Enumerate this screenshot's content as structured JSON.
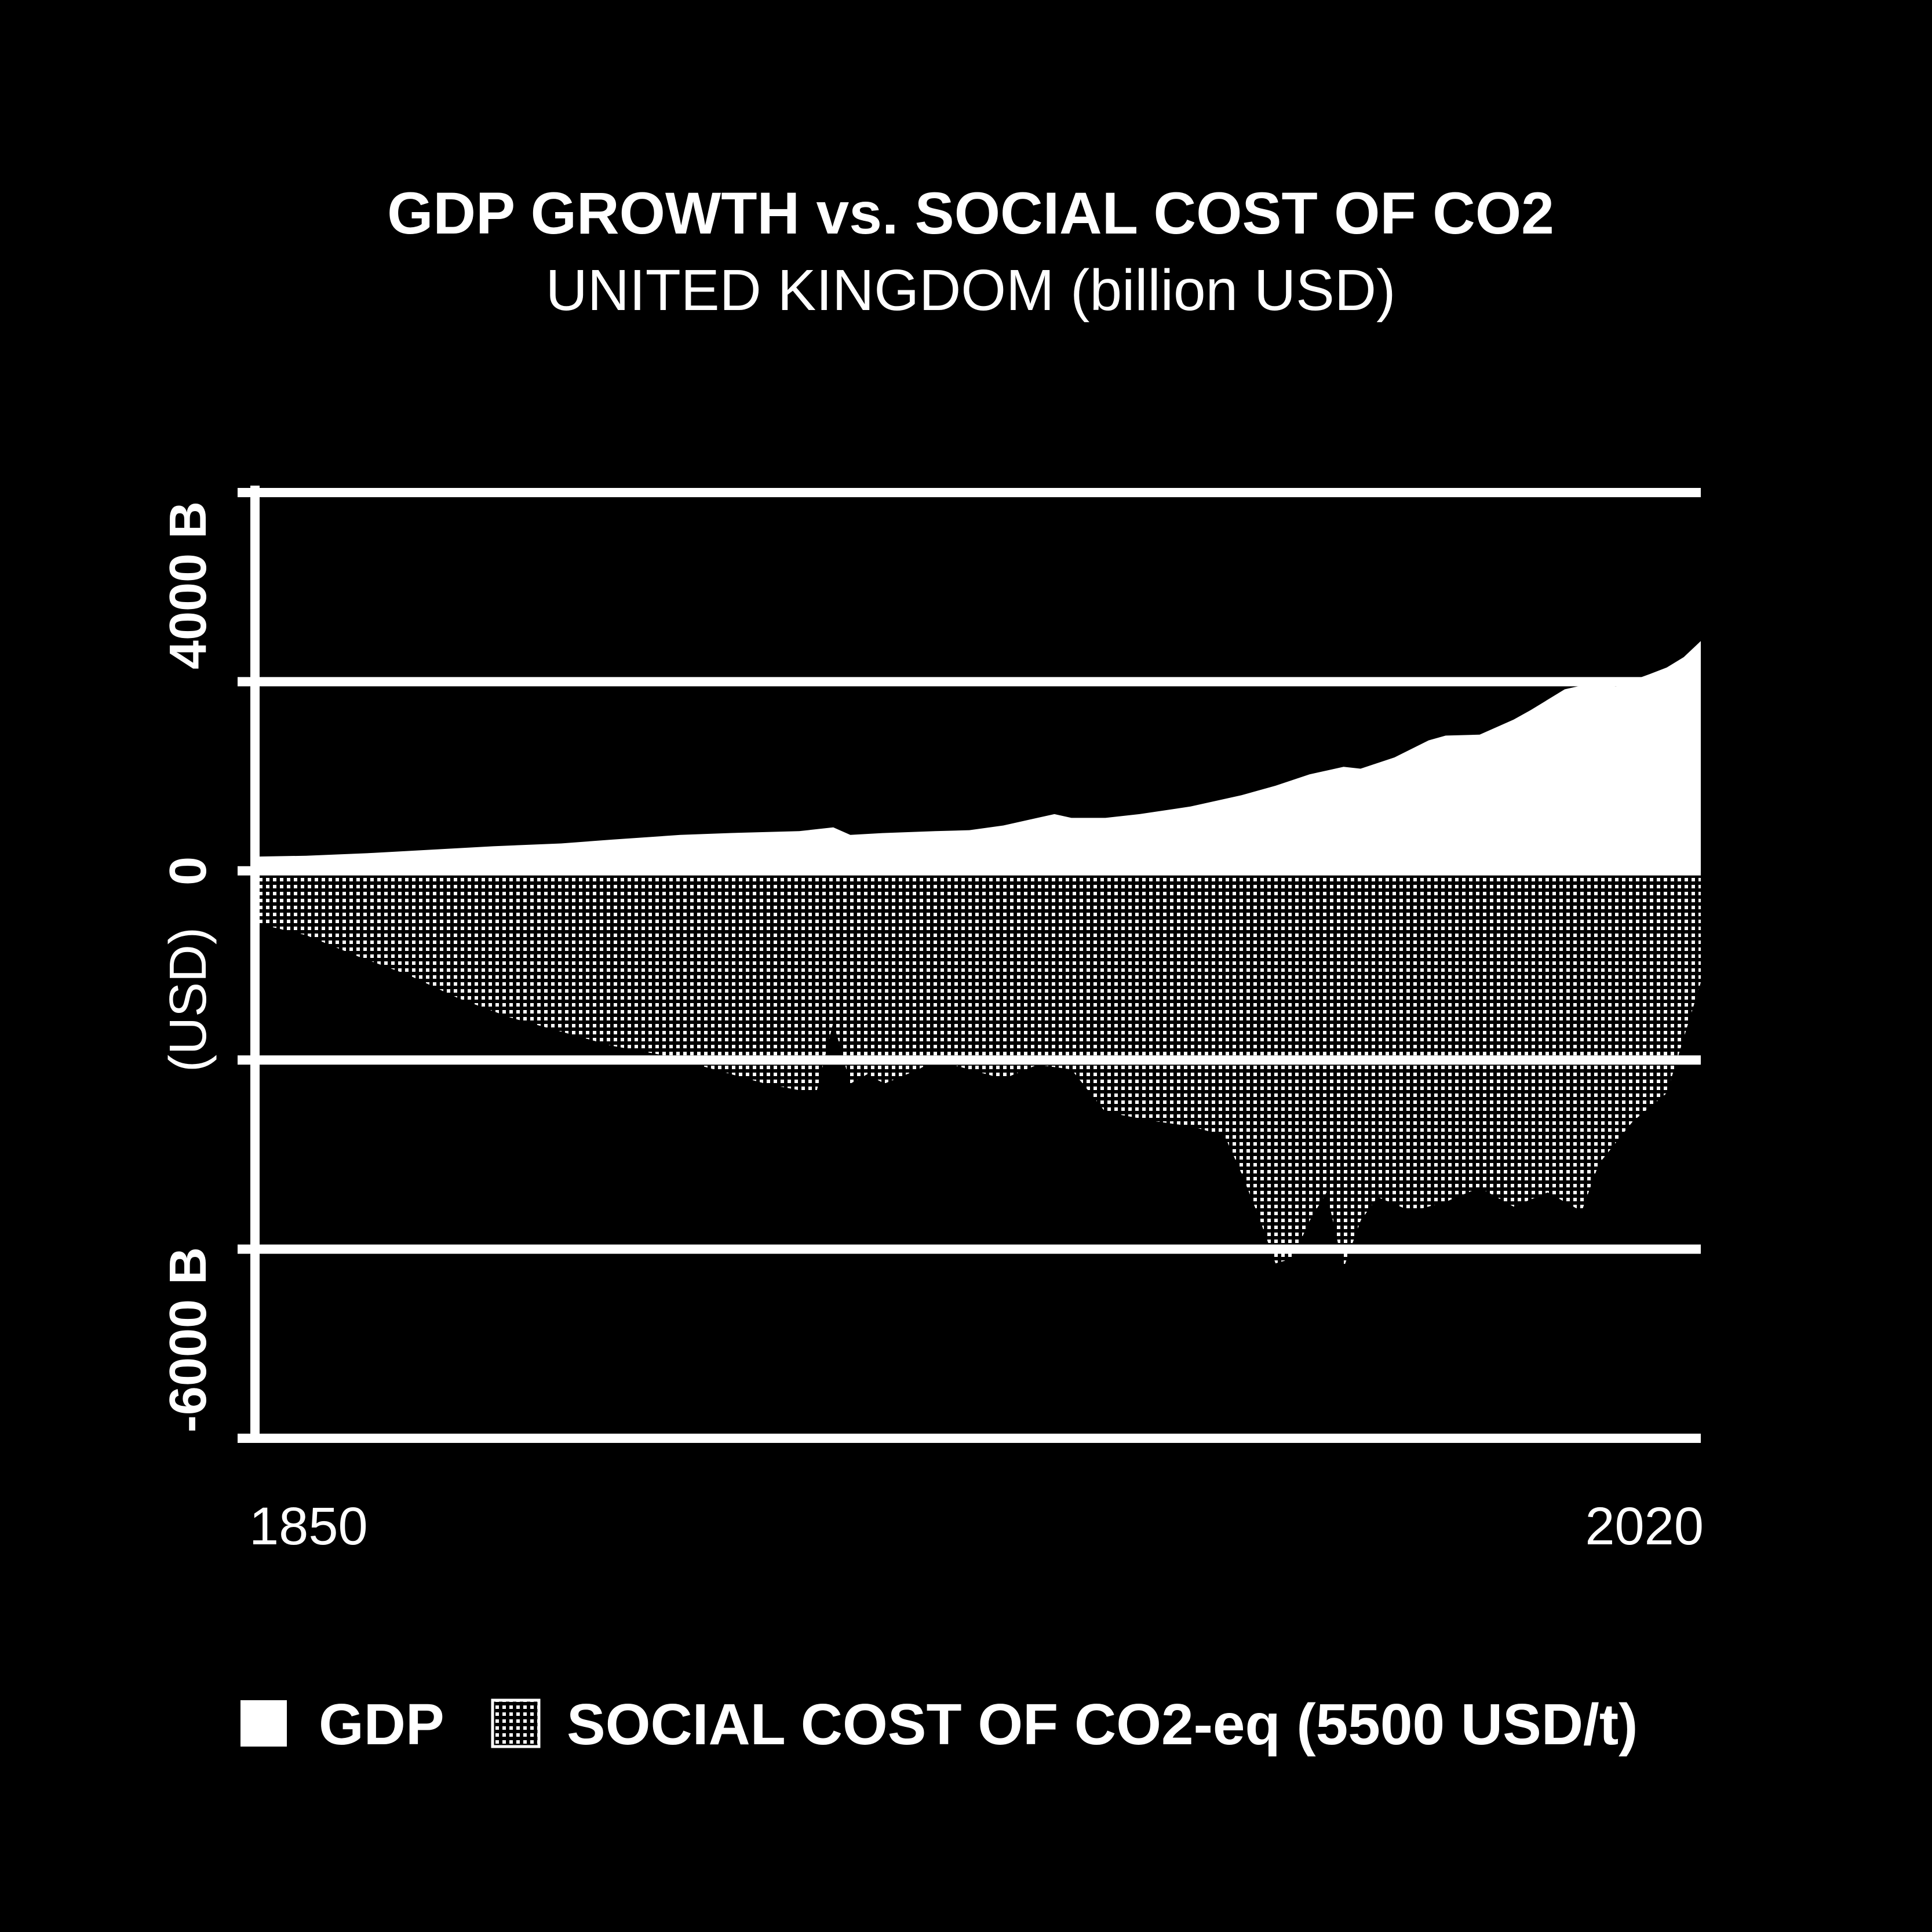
{
  "chart_data": {
    "type": "area",
    "title": "GDP GROWTH vs. SOCIAL COST OF CO2",
    "subtitle": "UNITED KINGDOM (billion USD)",
    "ylabel": "(USD)",
    "ylim": [
      -6000,
      4000
    ],
    "yticks": [
      {
        "value": 4000,
        "label": "4000 B"
      },
      {
        "value": 0,
        "label": "0"
      },
      {
        "value": -6000,
        "label": "-6000 B"
      }
    ],
    "ygrid": [
      4000,
      2000,
      0,
      -2000,
      -4000,
      -6000
    ],
    "xlim": [
      1850,
      2020
    ],
    "xticks": [
      {
        "value": 1850,
        "label": "1850"
      },
      {
        "value": 2020,
        "label": "2020"
      }
    ],
    "series": [
      {
        "name": "GDP",
        "fill": "solid-white",
        "points": [
          [
            1850,
            150
          ],
          [
            1856,
            160
          ],
          [
            1864,
            190
          ],
          [
            1872,
            230
          ],
          [
            1878,
            260
          ],
          [
            1886,
            290
          ],
          [
            1892,
            330
          ],
          [
            1900,
            380
          ],
          [
            1906,
            400
          ],
          [
            1914,
            420
          ],
          [
            1918,
            460
          ],
          [
            1920,
            380
          ],
          [
            1924,
            400
          ],
          [
            1930,
            420
          ],
          [
            1934,
            430
          ],
          [
            1938,
            480
          ],
          [
            1942,
            560
          ],
          [
            1944,
            600
          ],
          [
            1946,
            560
          ],
          [
            1950,
            560
          ],
          [
            1954,
            600
          ],
          [
            1960,
            680
          ],
          [
            1966,
            800
          ],
          [
            1970,
            900
          ],
          [
            1974,
            1020
          ],
          [
            1978,
            1100
          ],
          [
            1980,
            1080
          ],
          [
            1984,
            1200
          ],
          [
            1988,
            1380
          ],
          [
            1990,
            1430
          ],
          [
            1994,
            1440
          ],
          [
            1996,
            1520
          ],
          [
            1998,
            1600
          ],
          [
            2000,
            1700
          ],
          [
            2004,
            1920
          ],
          [
            2008,
            2000
          ],
          [
            2010,
            1950
          ],
          [
            2014,
            2080
          ],
          [
            2016,
            2150
          ],
          [
            2018,
            2260
          ],
          [
            2020,
            2430
          ]
        ]
      },
      {
        "name": "SOCIAL COST OF CO2-eq (5500 USD/t)",
        "fill": "dotted-white",
        "points": [
          [
            1850,
            -550
          ],
          [
            1856,
            -680
          ],
          [
            1862,
            -900
          ],
          [
            1868,
            -1100
          ],
          [
            1874,
            -1350
          ],
          [
            1880,
            -1550
          ],
          [
            1886,
            -1700
          ],
          [
            1892,
            -1850
          ],
          [
            1898,
            -1950
          ],
          [
            1904,
            -2100
          ],
          [
            1910,
            -2250
          ],
          [
            1914,
            -2320
          ],
          [
            1916,
            -2350
          ],
          [
            1918,
            -1600
          ],
          [
            1920,
            -2250
          ],
          [
            1922,
            -2150
          ],
          [
            1924,
            -2250
          ],
          [
            1928,
            -2100
          ],
          [
            1930,
            -2000
          ],
          [
            1934,
            -2100
          ],
          [
            1938,
            -2200
          ],
          [
            1942,
            -2050
          ],
          [
            1946,
            -2100
          ],
          [
            1950,
            -2550
          ],
          [
            1956,
            -2650
          ],
          [
            1960,
            -2700
          ],
          [
            1964,
            -2800
          ],
          [
            1966,
            -3200
          ],
          [
            1968,
            -3650
          ],
          [
            1970,
            -4150
          ],
          [
            1972,
            -4100
          ],
          [
            1974,
            -3700
          ],
          [
            1976,
            -3400
          ],
          [
            1978,
            -4200
          ],
          [
            1980,
            -3700
          ],
          [
            1982,
            -3450
          ],
          [
            1986,
            -3600
          ],
          [
            1990,
            -3500
          ],
          [
            1994,
            -3350
          ],
          [
            1998,
            -3550
          ],
          [
            2002,
            -3400
          ],
          [
            2006,
            -3600
          ],
          [
            2008,
            -3100
          ],
          [
            2012,
            -2650
          ],
          [
            2016,
            -2350
          ],
          [
            2020,
            -1180
          ]
        ]
      }
    ],
    "legend": {
      "position": "bottom",
      "items": [
        {
          "label": "GDP",
          "swatch": "solid"
        },
        {
          "label": "SOCIAL COST OF CO2-eq (5500 USD/t)",
          "swatch": "dotted"
        }
      ]
    },
    "colors": {
      "background": "#000000",
      "foreground": "#ffffff"
    }
  }
}
